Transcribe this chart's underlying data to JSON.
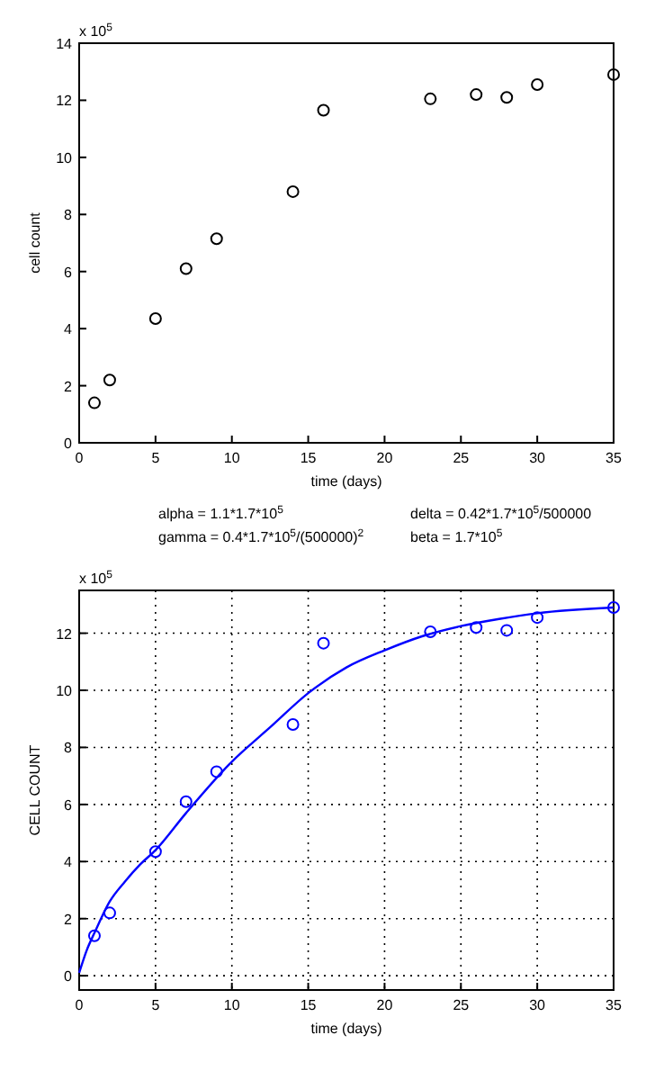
{
  "chart_data": [
    {
      "type": "scatter",
      "xlabel": "time (days)",
      "ylabel": "cell count",
      "annotations": [
        "x 10$^{5}$"
      ],
      "xlim": [
        0,
        35
      ],
      "ylim": [
        0,
        14
      ],
      "xticks": [
        0,
        5,
        10,
        15,
        20,
        25,
        30,
        35
      ],
      "yticks": [
        0,
        2,
        4,
        6,
        8,
        10,
        12,
        14
      ],
      "grid": false,
      "marker": "circle",
      "series": [
        {
          "color": "#000000",
          "x": [
            1,
            2,
            5,
            7,
            9,
            14,
            16,
            23,
            26,
            28,
            30,
            35
          ],
          "values": [
            1.4,
            2.2,
            4.35,
            6.1,
            7.15,
            8.8,
            11.65,
            12.05,
            12.2,
            12.1,
            12.55,
            12.9
          ]
        }
      ]
    },
    {
      "type": "scatter",
      "xlabel": "time (days)",
      "ylabel": "CELL COUNT",
      "annotations": [
        "x 10$^{5}$",
        "alpha = 1.1*1.7*10$^{5}$",
        "delta = 0.42*1.7*10$^{5}$/500000",
        "gamma = 0.4*1.7*10$^{5}$/(500000)$^{2}$",
        "beta = 1.7*10$^{5}$"
      ],
      "xlim": [
        0,
        35
      ],
      "ylim": [
        -0.5,
        13.5
      ],
      "xticks": [
        0,
        5,
        10,
        15,
        20,
        25,
        30,
        35
      ],
      "yticks": [
        0,
        2,
        4,
        6,
        8,
        10,
        12
      ],
      "grid": true,
      "marker": "circle",
      "series": [
        {
          "color": "#0000ff",
          "x": [
            1,
            2,
            5,
            7,
            9,
            14,
            16,
            23,
            26,
            28,
            30,
            35
          ],
          "values": [
            1.4,
            2.2,
            4.35,
            6.1,
            7.15,
            8.8,
            11.65,
            12.05,
            12.2,
            12.1,
            12.55,
            12.9
          ]
        },
        {
          "type": "line",
          "marker": "none",
          "line_style": "solid",
          "color": "#0000ff",
          "x": [
            0,
            0.5,
            1,
            2,
            3,
            4,
            5,
            7,
            10,
            12.5,
            15,
            17.5,
            20,
            22.5,
            25,
            27.5,
            30,
            35
          ],
          "values": [
            0.1,
            0.9,
            1.5,
            2.6,
            3.3,
            3.9,
            4.4,
            5.7,
            7.5,
            8.7,
            9.9,
            10.8,
            11.4,
            11.9,
            12.25,
            12.5,
            12.7,
            12.9
          ]
        }
      ]
    }
  ]
}
